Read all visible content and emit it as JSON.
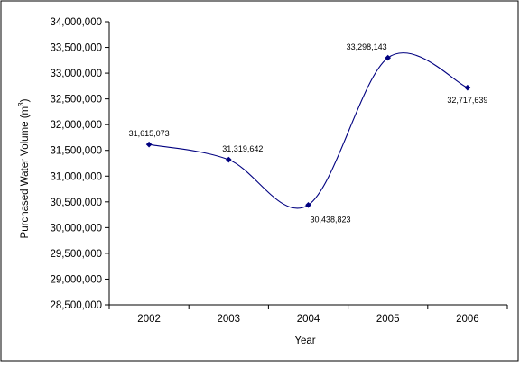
{
  "colors": {
    "series": "#000080",
    "marker": "#000080",
    "axis": "#000000",
    "frame": "#000000",
    "background": "#ffffff"
  },
  "chart_data": {
    "type": "line",
    "title": "",
    "xlabel": "Year",
    "ylabel": "Purchased Water Volume (m",
    "ylabel_superscript": "3",
    "ylabel_suffix": ")",
    "categories": [
      "2002",
      "2003",
      "2004",
      "2005",
      "2006"
    ],
    "series": [
      {
        "values": [
          31615073,
          31319642,
          30438823,
          33298143,
          32717639
        ],
        "smoothed": true,
        "marker": "diamond"
      }
    ],
    "data_labels": [
      "31,615,073",
      "31,319,642",
      "30,438,823",
      "33,298,143",
      "32,717,639"
    ],
    "ylim": [
      28500000,
      34000000
    ],
    "yticks": [
      28500000,
      29000000,
      29500000,
      30000000,
      30500000,
      31000000,
      31500000,
      32000000,
      32500000,
      33000000,
      33500000,
      34000000
    ],
    "ytick_labels": [
      "28,500,000",
      "29,000,000",
      "29,500,000",
      "30,000,000",
      "30,500,000",
      "31,000,000",
      "31,500,000",
      "32,000,000",
      "32,500,000",
      "33,000,000",
      "33,500,000",
      "34,000,000"
    ],
    "grid": false,
    "legend": "none"
  }
}
